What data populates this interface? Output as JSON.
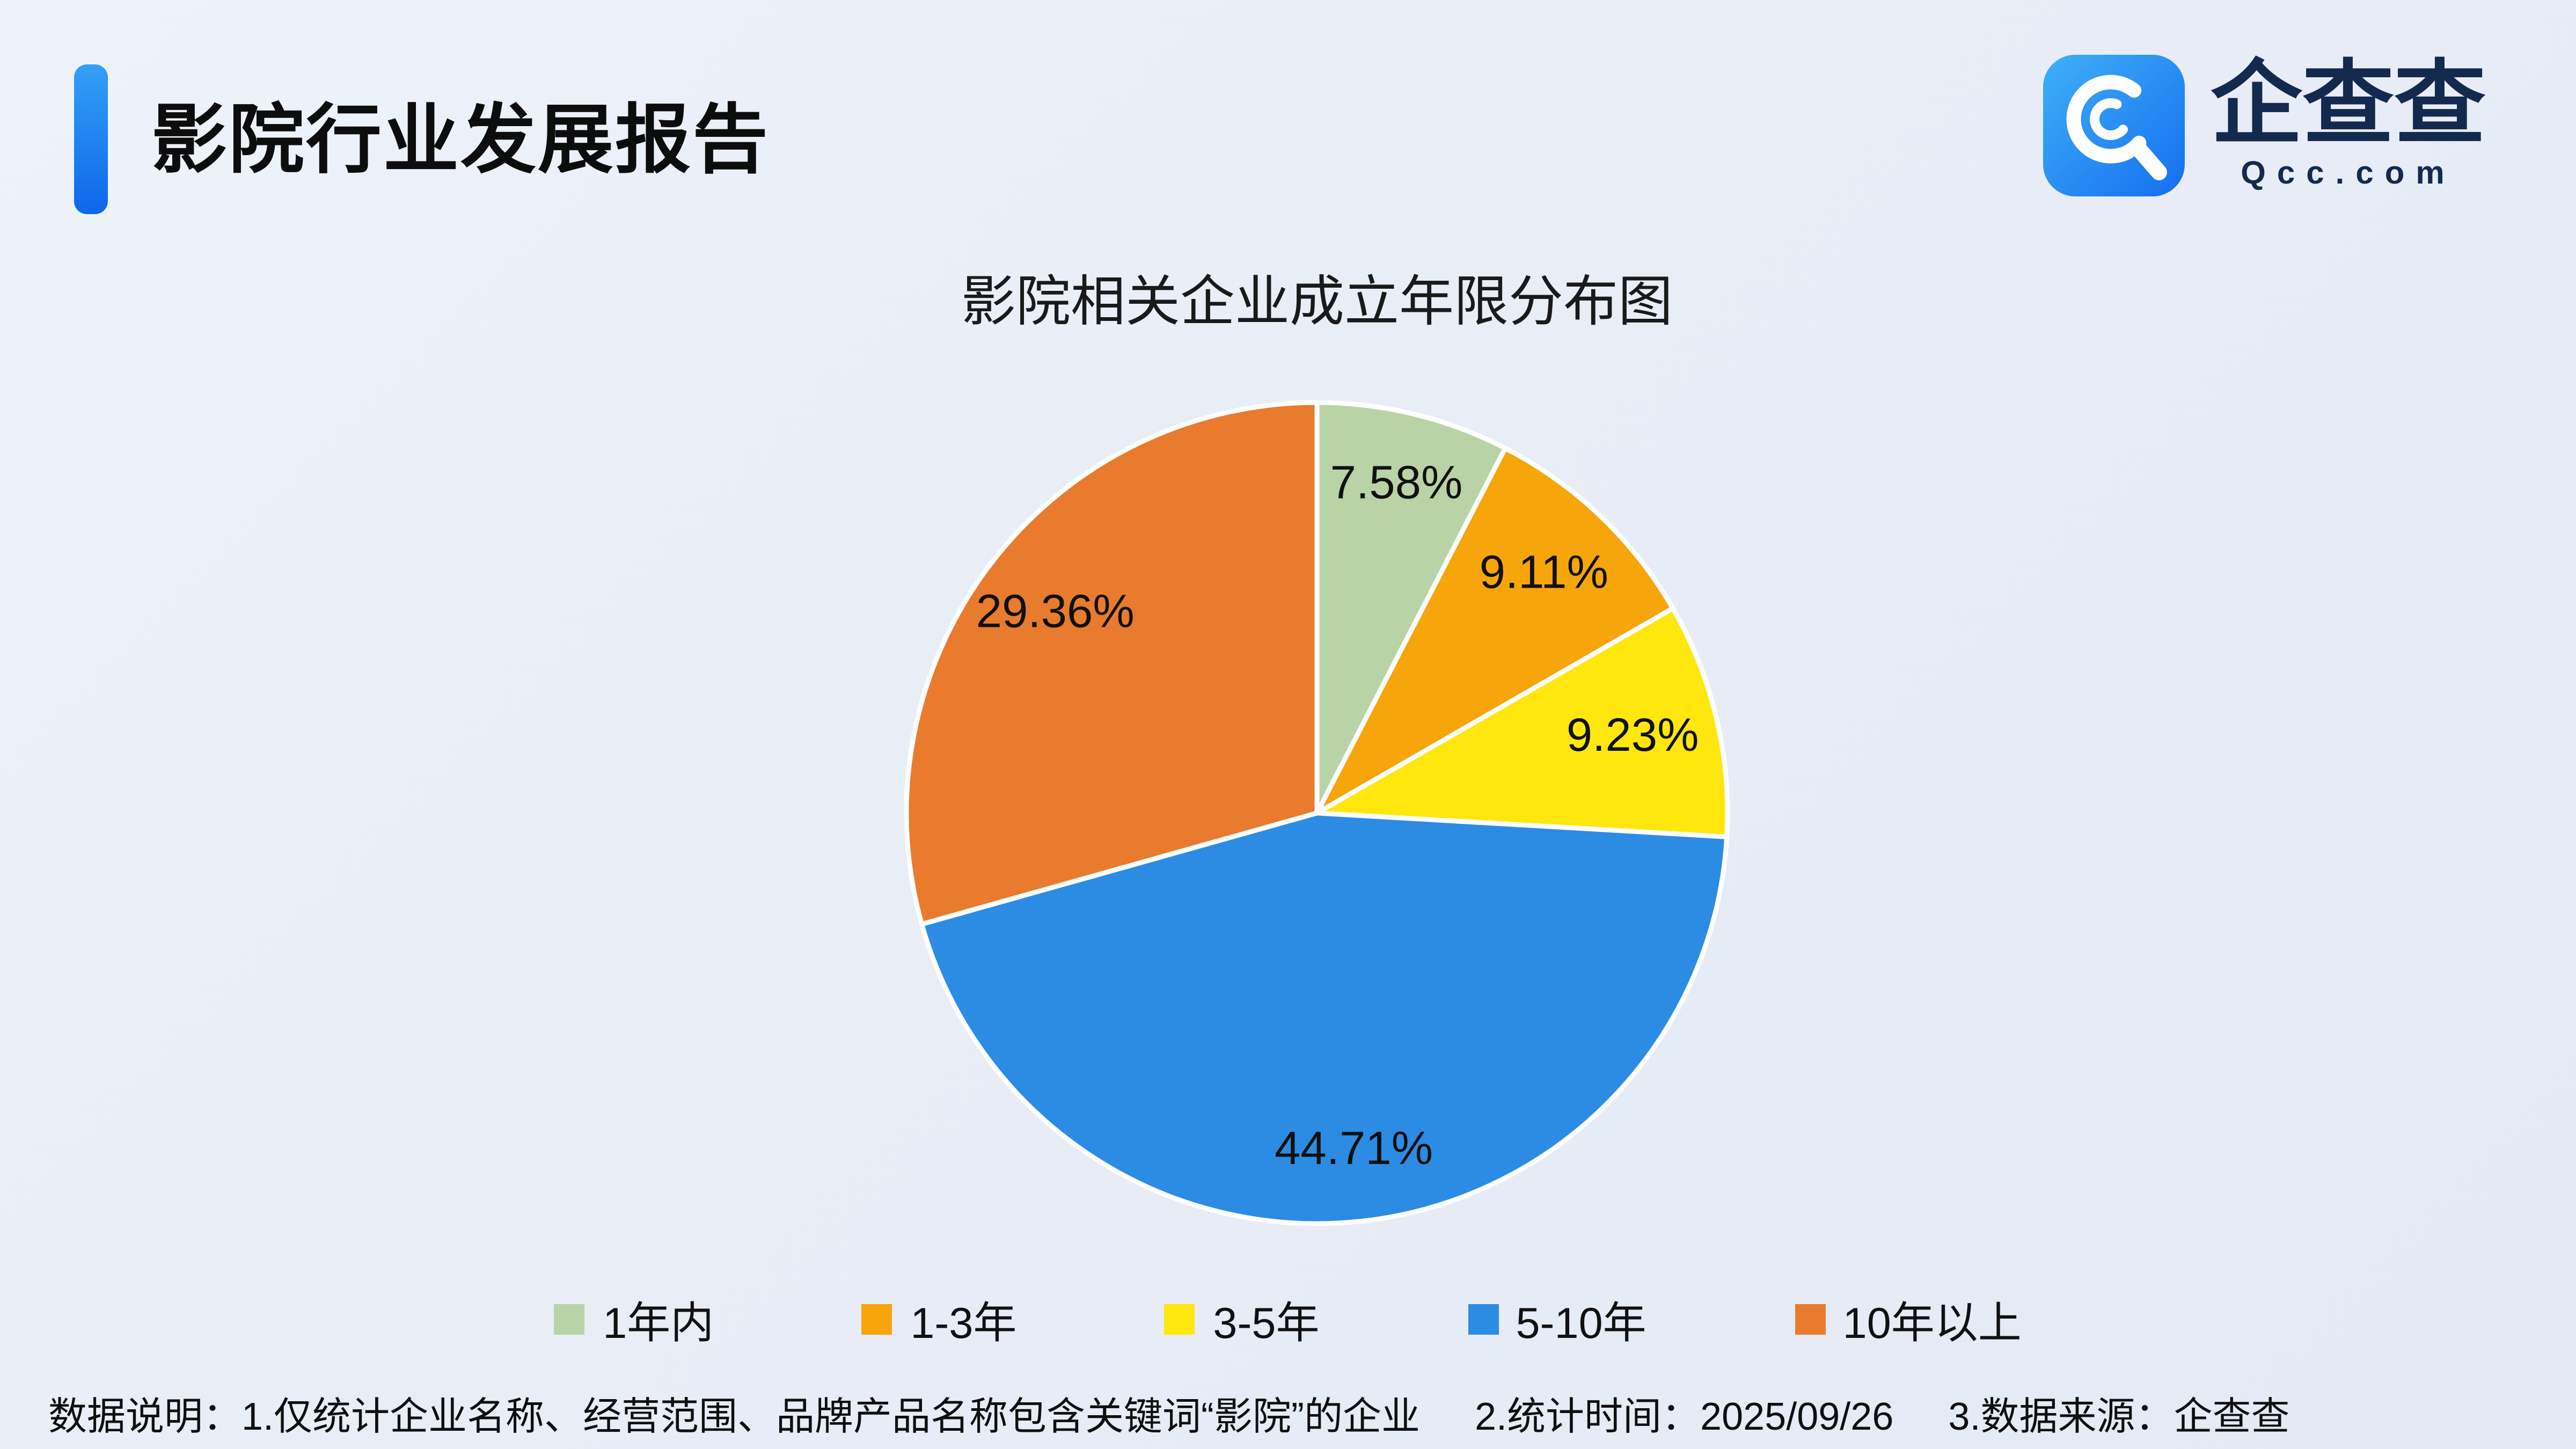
{
  "header": {
    "title": "影院行业发展报告",
    "logo": {
      "name": "企查查",
      "domain": "Qcc.com"
    }
  },
  "chart_data": {
    "type": "pie",
    "title": "影院相关企业成立年限分布图",
    "start_angle_deg": 0,
    "direction": "clockwise",
    "legend_position": "bottom",
    "slices": [
      {
        "label": "1年内",
        "value": 7.58,
        "display": "7.58%",
        "color": "#b9d3a7"
      },
      {
        "label": "1-3年",
        "value": 9.11,
        "display": "9.11%",
        "color": "#f6a50a"
      },
      {
        "label": "3-5年",
        "value": 9.23,
        "display": "9.23%",
        "color": "#ffe70d"
      },
      {
        "label": "5-10年",
        "value": 44.71,
        "display": "44.71%",
        "color": "#2c8ce4"
      },
      {
        "label": "10年以上",
        "value": 29.36,
        "display": "29.36%",
        "color": "#e87b2e"
      }
    ]
  },
  "footer": {
    "parts": [
      "数据说明：1.仅统计企业名称、经营范围、品牌产品名称包含关键词“影院”的企业",
      "2.统计时间：2025/09/26",
      "3.数据来源：企查查"
    ]
  }
}
